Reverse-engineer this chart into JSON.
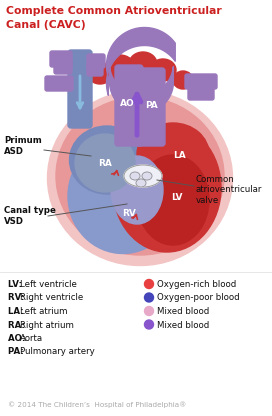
{
  "title_line1": "Complete Common Atrioventricular",
  "title_line2": "Canal (CAVC)",
  "title_color": "#cc2020",
  "title_fontsize": 7.8,
  "bg_color": "#ffffff",
  "legend_left": [
    [
      "LV",
      "Left ventricle"
    ],
    [
      "RV",
      "Right ventricle"
    ],
    [
      "LA",
      "Left atrium"
    ],
    [
      "RA",
      "Right atrium"
    ],
    [
      "AO",
      "Aorta"
    ],
    [
      "PA",
      "Pulmonary artery"
    ]
  ],
  "legend_right_dots": [
    [
      "#e84040",
      "Oxygen-rich blood"
    ],
    [
      "#4444bb",
      "Oxygen-poor blood"
    ],
    [
      "#e8a8c8",
      "Mixed blood"
    ],
    [
      "#8855cc",
      "Mixed blood"
    ]
  ],
  "copyright": "© 2014 The Children’s  Hospital of Philadelphia®",
  "label_AO": "AO",
  "label_PA": "PA",
  "label_LA": "LA",
  "label_LV": "LV",
  "label_RA": "RA",
  "label_RV": "RV",
  "label_primum": "Primum\nASD",
  "label_canal": "Canal type\nVSD",
  "label_common": "Common\natrioventricular\nvalve",
  "heart_outer_pink": "#f2c4c4",
  "heart_mid_pink": "#e89898",
  "la_red": "#cc3333",
  "lv_red": "#bb2222",
  "ra_blue": "#7788bb",
  "rv_blue": "#8899cc",
  "ra_purple": "#9988bb",
  "vessel_purple": "#9977bb",
  "svc_blue": "#7788bb",
  "arrow_blue": "#88bbdd",
  "arrow_purple": "#8855cc",
  "arrow_red": "#cc3333",
  "valve_light": "#ccccdd",
  "white": "#ffffff"
}
